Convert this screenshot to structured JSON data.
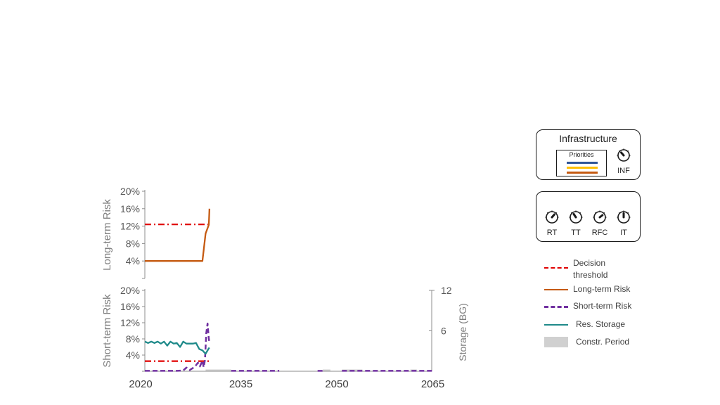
{
  "chart_data": [
    {
      "type": "line",
      "ylabel": "Long-term Risk",
      "yticks": [
        "20%",
        "16%",
        "12%",
        "8%",
        "4%"
      ],
      "ytick_values": [
        20,
        16,
        12,
        8,
        4
      ],
      "ylim": [
        0,
        20
      ],
      "xlim": [
        2020,
        2065
      ],
      "decision_threshold": 12.4,
      "series": [
        {
          "name": "Long-term Risk",
          "color": "#c55a11",
          "x": [
            2020,
            2021,
            2022,
            2023,
            2024,
            2025,
            2026,
            2027,
            2028,
            2029,
            2029.5,
            2030,
            2030.1
          ],
          "y": [
            4,
            4,
            4,
            4,
            4,
            4,
            4,
            4,
            4,
            4,
            10.3,
            12.3,
            16
          ]
        }
      ]
    },
    {
      "type": "line",
      "ylabel": "Short-term Risk",
      "ylabel_right": "Storage (BG)",
      "yticks": [
        "20%",
        "16%",
        "12%",
        "8%",
        "4%"
      ],
      "ytick_values": [
        20,
        16,
        12,
        8,
        4
      ],
      "ylim": [
        0,
        20
      ],
      "yticks_right": [
        "12",
        "6"
      ],
      "ytick_right_values": [
        12,
        6
      ],
      "ylim_right": [
        0,
        12
      ],
      "x_ticks": [
        "2020",
        "2035",
        "2050",
        "2065"
      ],
      "x_tick_values": [
        2020,
        2035,
        2050,
        2065
      ],
      "xlim": [
        2020,
        2065
      ],
      "decision_threshold": 2.5,
      "series": [
        {
          "name": "Short-term Risk",
          "color": "#7030a0",
          "x": [
            2020,
            2021,
            2022,
            2023,
            2024,
            2025,
            2026,
            2026.5,
            2027,
            2027.5,
            2028,
            2028.3,
            2028.6,
            2029,
            2029.2,
            2029.4,
            2029.6,
            2029.8,
            2030,
            2030.1
          ],
          "y": [
            0.1,
            0.1,
            0.1,
            0.1,
            0.1,
            0.1,
            0.2,
            0.9,
            0.3,
            0.8,
            1.5,
            2.1,
            1.2,
            2.6,
            1.0,
            2.8,
            9.5,
            11.8,
            8.0,
            7.0
          ]
        },
        {
          "name": "Res. Storage",
          "color": "#1f8a8a",
          "axis": "right",
          "x": [
            2020,
            2020.5,
            2021,
            2021.5,
            2022,
            2022.5,
            2023,
            2023.5,
            2024,
            2024.5,
            2025,
            2025.5,
            2026,
            2026.5,
            2027,
            2027.5,
            2028,
            2028.5,
            2029,
            2029.5,
            2030,
            2030.1
          ],
          "y": [
            4.4,
            4.2,
            4.4,
            4.2,
            4.4,
            4.1,
            4.4,
            3.8,
            4.4,
            4.1,
            4.2,
            3.6,
            4.4,
            4.1,
            4.1,
            4.1,
            4.2,
            3.3,
            3.1,
            2.6,
            3.4,
            3.5
          ]
        },
        {
          "name": "Short-term Risk",
          "color": "#7030a0",
          "x": [
            2033.5,
            2041
          ],
          "y": [
            0.1,
            0.1
          ]
        },
        {
          "name": "Short-term Risk",
          "color": "#7030a0",
          "x": [
            2047,
            2048.2
          ],
          "y": [
            0.1,
            0.1
          ]
        },
        {
          "name": "Short-term Risk",
          "color": "#7030a0",
          "x": [
            2050.8,
            2065
          ],
          "y": [
            0.1,
            0.1
          ]
        }
      ],
      "construction_periods": [
        [
          2029.5,
          2033.5
        ],
        [
          2047.8,
          2049
        ],
        [
          2050.8,
          2054
        ],
        [
          2061.5,
          2062.5
        ]
      ]
    }
  ],
  "legend": [
    {
      "label": "Decision threshold",
      "color": "#e00000",
      "style": "dashdot"
    },
    {
      "label": "Long-term Risk",
      "color": "#c55a11",
      "style": "solid"
    },
    {
      "label": "Short-term Risk",
      "color": "#7030a0",
      "style": "dashed"
    },
    {
      "label": "Res. Storage",
      "color": "#1f8a8a",
      "style": "solid"
    },
    {
      "label": "Constr. Period",
      "color": "#d0d0d0",
      "style": "block"
    }
  ],
  "infrastructure_panel": {
    "title": "Infrastructure",
    "priorities_label": "Priorities",
    "priority_colors": [
      "#2f5597",
      "#ffc000",
      "#c55a11"
    ],
    "knob_label": "INF"
  },
  "policy_panel": {
    "knobs": [
      "RT",
      "TT",
      "RFC",
      "IT"
    ]
  }
}
